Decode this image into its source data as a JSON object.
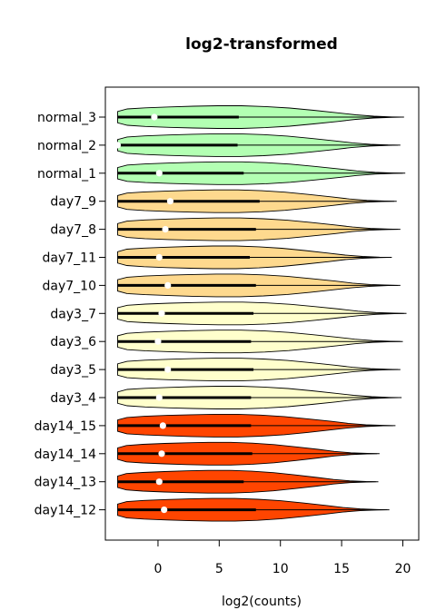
{
  "chart_data": {
    "type": "violin",
    "title": "log2-transformed",
    "xlabel": "log2(counts)",
    "ylabel": "",
    "xlim": [
      -4.3,
      21.3
    ],
    "xticks": [
      0,
      5,
      10,
      15,
      20
    ],
    "grid": false,
    "legend": "none",
    "colors": {
      "normal": "#b3ffb3",
      "day7": "#fed98e",
      "day3": "#ffffcc",
      "day14": "#ff4500",
      "outline": "#000000",
      "median_dot": "#ffffff"
    },
    "violin_shape": [
      [
        -3.3,
        0.5
      ],
      [
        -2.5,
        0.72
      ],
      [
        -1.0,
        0.82
      ],
      [
        1.0,
        0.9
      ],
      [
        3.0,
        0.96
      ],
      [
        5.0,
        1.0
      ],
      [
        7.0,
        1.0
      ],
      [
        9.0,
        0.93
      ],
      [
        11.0,
        0.8
      ],
      [
        13.0,
        0.6
      ],
      [
        15.0,
        0.38
      ],
      [
        16.5,
        0.2
      ],
      [
        18.0,
        0.08
      ],
      [
        19.5,
        0.02
      ]
    ],
    "categories": [
      "normal_3",
      "normal_2",
      "normal_1",
      "day7_9",
      "day7_8",
      "day7_11",
      "day7_10",
      "day3_7",
      "day3_6",
      "day3_5",
      "day3_4",
      "day14_15",
      "day14_14",
      "day14_13",
      "day14_12"
    ],
    "series": [
      {
        "label": "normal_3",
        "group": "normal",
        "min": -3.3,
        "q1": -3.3,
        "median": -0.3,
        "q3": 6.6,
        "max": 20.1
      },
      {
        "label": "normal_2",
        "group": "normal",
        "min": -3.3,
        "q1": -3.3,
        "median": -3.3,
        "q3": 6.5,
        "max": 19.8
      },
      {
        "label": "normal_1",
        "group": "normal",
        "min": -3.3,
        "q1": -3.3,
        "median": 0.1,
        "q3": 7.0,
        "max": 20.2
      },
      {
        "label": "day7_9",
        "group": "day7",
        "min": -3.3,
        "q1": -3.3,
        "median": 1.0,
        "q3": 8.3,
        "max": 19.5
      },
      {
        "label": "day7_8",
        "group": "day7",
        "min": -3.3,
        "q1": -3.3,
        "median": 0.6,
        "q3": 8.0,
        "max": 19.8
      },
      {
        "label": "day7_11",
        "group": "day7",
        "min": -3.3,
        "q1": -3.3,
        "median": 0.1,
        "q3": 7.5,
        "max": 19.1
      },
      {
        "label": "day7_10",
        "group": "day7",
        "min": -3.3,
        "q1": -3.3,
        "median": 0.8,
        "q3": 8.0,
        "max": 19.8
      },
      {
        "label": "day3_7",
        "group": "day3",
        "min": -3.3,
        "q1": -3.3,
        "median": 0.3,
        "q3": 7.8,
        "max": 20.3
      },
      {
        "label": "day3_6",
        "group": "day3",
        "min": -3.3,
        "q1": -3.3,
        "median": 0.0,
        "q3": 7.6,
        "max": 20.0
      },
      {
        "label": "day3_5",
        "group": "day3",
        "min": -3.3,
        "q1": -3.3,
        "median": 0.8,
        "q3": 7.8,
        "max": 19.8
      },
      {
        "label": "day3_4",
        "group": "day3",
        "min": -3.3,
        "q1": -3.3,
        "median": 0.1,
        "q3": 7.6,
        "max": 19.9
      },
      {
        "label": "day14_15",
        "group": "day14",
        "min": -3.3,
        "q1": -3.3,
        "median": 0.4,
        "q3": 7.6,
        "max": 19.4
      },
      {
        "label": "day14_14",
        "group": "day14",
        "min": -3.3,
        "q1": -3.3,
        "median": 0.3,
        "q3": 7.7,
        "max": 18.1
      },
      {
        "label": "day14_13",
        "group": "day14",
        "min": -3.3,
        "q1": -3.3,
        "median": 0.1,
        "q3": 7.0,
        "max": 18.0
      },
      {
        "label": "day14_12",
        "group": "day14",
        "min": -3.3,
        "q1": -3.3,
        "median": 0.5,
        "q3": 8.0,
        "max": 18.9
      }
    ]
  }
}
